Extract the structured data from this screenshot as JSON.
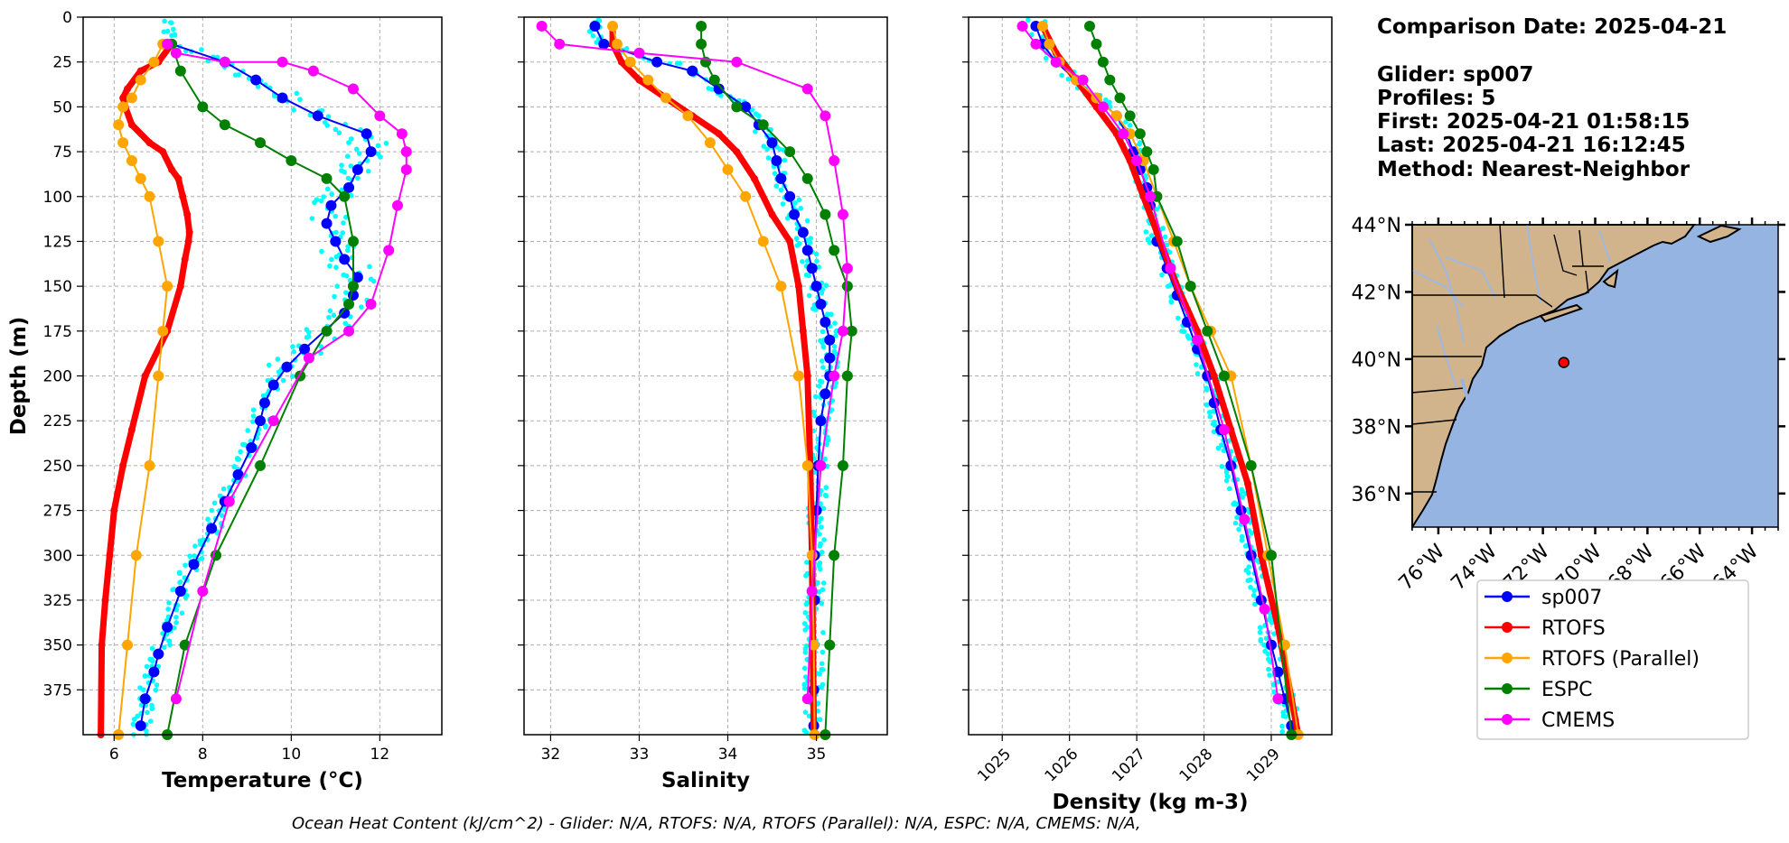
{
  "info": {
    "comparison_date": "Comparison Date: 2025-04-21",
    "glider": "Glider: sp007",
    "profiles": "Profiles: 5",
    "first": "First: 2025-04-21 01:58:15",
    "last": "Last: 2025-04-21 16:12:45",
    "method": "Method: Nearest-Neighbor"
  },
  "footer": "Ocean Heat Content (kJ/cm^2) - Glider: N/A,  RTOFS: N/A,  RTOFS (Parallel): N/A,  ESPC: N/A,  CMEMS: N/A,",
  "colors": {
    "sp007": "#0000ff",
    "RTOFS": "#ff0000",
    "RTOFS (Parallel)": "#ffa500",
    "ESPC": "#008000",
    "CMEMS": "#ff00ff",
    "raw": "#00ffff",
    "land": "#d2b48c",
    "ocean": "#96b4e1"
  },
  "legend": [
    "sp007",
    "RTOFS",
    "RTOFS (Parallel)",
    "ESPC",
    "CMEMS"
  ],
  "chart_data": [
    {
      "type": "line",
      "xlabel": "Temperature (°C)",
      "ylabel": "Depth (m)",
      "xlim": [
        5.3,
        13.4
      ],
      "ylim": [
        400,
        0
      ],
      "xticks": [
        6,
        8,
        10,
        12
      ],
      "yticks": [
        0,
        25,
        50,
        75,
        100,
        125,
        150,
        175,
        200,
        225,
        250,
        275,
        300,
        325,
        350,
        375
      ],
      "grid": true,
      "series": [
        {
          "name": "sp007",
          "x": [
            7.3,
            8.5,
            9.2,
            9.8,
            10.6,
            11.7,
            11.8,
            11.5,
            11.3,
            10.9,
            10.8,
            11.0,
            11.2,
            11.5,
            11.4,
            11.2,
            10.3,
            9.9,
            9.6,
            9.4,
            9.3,
            9.1,
            8.8,
            8.5,
            8.2,
            7.8,
            7.5,
            7.2,
            7.0,
            6.9,
            6.7,
            6.6
          ],
          "y": [
            15,
            25,
            35,
            45,
            55,
            65,
            75,
            85,
            95,
            105,
            115,
            125,
            135,
            145,
            155,
            165,
            185,
            195,
            205,
            215,
            225,
            240,
            255,
            270,
            285,
            305,
            320,
            340,
            355,
            365,
            380,
            395
          ]
        },
        {
          "name": "RTOFS",
          "x": [
            7.3,
            7.0,
            6.6,
            6.3,
            6.2,
            6.25,
            6.4,
            6.8,
            7.1,
            7.3,
            7.45,
            7.55,
            7.65,
            7.7,
            7.68,
            7.6,
            7.5,
            7.2,
            6.7,
            6.4,
            6.2,
            6.0,
            5.9,
            5.8,
            5.72,
            5.7
          ],
          "y": [
            15,
            25,
            30,
            40,
            45,
            50,
            60,
            70,
            75,
            85,
            90,
            100,
            110,
            120,
            125,
            135,
            150,
            175,
            200,
            230,
            250,
            275,
            300,
            325,
            350,
            400
          ]
        },
        {
          "name": "RTOFS (Parallel)",
          "x": [
            7.1,
            6.9,
            6.6,
            6.4,
            6.2,
            6.1,
            6.2,
            6.4,
            6.6,
            6.8,
            7.0,
            7.2,
            7.1,
            7.0,
            6.8,
            6.5,
            6.3,
            6.1
          ],
          "y": [
            15,
            25,
            35,
            45,
            50,
            60,
            70,
            80,
            90,
            100,
            125,
            150,
            175,
            200,
            250,
            300,
            350,
            400
          ]
        },
        {
          "name": "ESPC",
          "x": [
            7.3,
            7.5,
            8.0,
            8.5,
            9.3,
            10.0,
            10.8,
            11.2,
            11.4,
            11.4,
            11.3,
            10.8,
            10.2,
            9.3,
            8.3,
            7.6,
            7.2
          ],
          "y": [
            15,
            30,
            50,
            60,
            70,
            80,
            90,
            100,
            125,
            150,
            160,
            175,
            200,
            250,
            300,
            350,
            400
          ]
        },
        {
          "name": "CMEMS",
          "x": [
            7.2,
            7.4,
            8.5,
            9.8,
            10.5,
            11.4,
            12.0,
            12.5,
            12.6,
            12.6,
            12.4,
            12.2,
            11.8,
            11.3,
            10.4,
            9.6,
            8.6,
            8.0,
            7.4
          ],
          "y": [
            15,
            20,
            25,
            25,
            30,
            40,
            55,
            65,
            75,
            85,
            105,
            130,
            160,
            175,
            190,
            225,
            270,
            320,
            380
          ]
        }
      ]
    },
    {
      "type": "line",
      "xlabel": "Salinity",
      "xlim": [
        31.7,
        35.8
      ],
      "ylim": [
        400,
        0
      ],
      "xticks": [
        32,
        33,
        34,
        35
      ],
      "grid": true,
      "series": [
        {
          "name": "sp007",
          "x": [
            32.5,
            32.6,
            33.2,
            33.6,
            33.9,
            34.2,
            34.35,
            34.5,
            34.55,
            34.6,
            34.7,
            34.75,
            34.85,
            34.9,
            34.95,
            35.0,
            35.05,
            35.1,
            35.15,
            35.15,
            35.15,
            35.1,
            35.05,
            35.02,
            35.0,
            34.98,
            34.98,
            34.97,
            34.97,
            34.97
          ],
          "y": [
            5,
            15,
            25,
            30,
            40,
            50,
            60,
            70,
            80,
            90,
            100,
            110,
            120,
            130,
            140,
            150,
            160,
            170,
            180,
            190,
            200,
            210,
            225,
            250,
            275,
            300,
            325,
            350,
            375,
            395
          ]
        },
        {
          "name": "RTOFS",
          "x": [
            32.7,
            32.7,
            32.8,
            33.0,
            33.3,
            33.6,
            33.9,
            34.1,
            34.3,
            34.5,
            34.7,
            34.8,
            34.85,
            34.9,
            34.93,
            34.95,
            34.96,
            34.97
          ],
          "y": [
            5,
            15,
            25,
            35,
            45,
            55,
            65,
            75,
            90,
            110,
            125,
            150,
            175,
            200,
            250,
            300,
            350,
            400
          ]
        },
        {
          "name": "RTOFS (Parallel)",
          "x": [
            32.7,
            32.75,
            32.9,
            33.1,
            33.3,
            33.55,
            33.8,
            34.0,
            34.2,
            34.4,
            34.6,
            34.8,
            34.9,
            34.95,
            34.97,
            34.98
          ],
          "y": [
            5,
            15,
            25,
            35,
            45,
            55,
            70,
            85,
            100,
            125,
            150,
            200,
            250,
            300,
            350,
            400
          ]
        },
        {
          "name": "ESPC",
          "x": [
            33.7,
            33.7,
            33.75,
            33.85,
            34.1,
            34.4,
            34.7,
            34.9,
            35.1,
            35.2,
            35.35,
            35.4,
            35.35,
            35.3,
            35.2,
            35.15,
            35.1
          ],
          "y": [
            5,
            15,
            25,
            35,
            50,
            60,
            75,
            90,
            110,
            130,
            150,
            175,
            200,
            250,
            300,
            350,
            400
          ]
        },
        {
          "name": "CMEMS",
          "x": [
            31.9,
            32.1,
            33.0,
            34.1,
            34.9,
            35.1,
            35.2,
            35.3,
            35.35,
            35.3,
            35.2,
            35.05,
            34.95,
            34.9
          ],
          "y": [
            5,
            15,
            20,
            25,
            40,
            55,
            80,
            110,
            140,
            175,
            200,
            250,
            320,
            380
          ]
        }
      ]
    },
    {
      "type": "line",
      "xlabel": "Density (kg m-3)",
      "xlim": [
        1024.5,
        1029.9
      ],
      "ylim": [
        400,
        0
      ],
      "xticks": [
        1025,
        1026,
        1027,
        1028,
        1029
      ],
      "grid": true,
      "series": [
        {
          "name": "sp007",
          "x": [
            1025.5,
            1025.6,
            1025.8,
            1026.1,
            1026.4,
            1026.7,
            1026.85,
            1026.95,
            1027.05,
            1027.15,
            1027.2,
            1027.3,
            1027.45,
            1027.6,
            1027.75,
            1027.9,
            1028.05,
            1028.15,
            1028.25,
            1028.4,
            1028.55,
            1028.7,
            1028.85,
            1029.0,
            1029.1,
            1029.2,
            1029.3
          ],
          "y": [
            5,
            15,
            25,
            35,
            45,
            55,
            65,
            75,
            85,
            95,
            105,
            125,
            140,
            155,
            170,
            185,
            200,
            215,
            230,
            250,
            275,
            300,
            325,
            350,
            365,
            380,
            395
          ]
        },
        {
          "name": "RTOFS",
          "x": [
            1025.6,
            1025.8,
            1026.1,
            1026.4,
            1026.7,
            1026.9,
            1027.1,
            1027.3,
            1027.6,
            1027.9,
            1028.15,
            1028.4,
            1028.65,
            1028.85,
            1029.1,
            1029.4
          ],
          "y": [
            5,
            20,
            35,
            50,
            65,
            80,
            100,
            120,
            150,
            175,
            200,
            230,
            260,
            300,
            340,
            400
          ]
        },
        {
          "name": "RTOFS (Parallel)",
          "x": [
            1025.6,
            1025.7,
            1025.85,
            1026.1,
            1026.4,
            1026.7,
            1026.9,
            1027.1,
            1027.3,
            1027.55,
            1027.8,
            1028.1,
            1028.4,
            1028.7,
            1028.95,
            1029.2,
            1029.4
          ],
          "y": [
            5,
            15,
            25,
            35,
            45,
            55,
            65,
            80,
            100,
            125,
            150,
            175,
            200,
            250,
            300,
            350,
            400
          ]
        },
        {
          "name": "ESPC",
          "x": [
            1026.3,
            1026.4,
            1026.5,
            1026.6,
            1026.75,
            1026.9,
            1027.05,
            1027.15,
            1027.25,
            1027.3,
            1027.6,
            1027.8,
            1028.05,
            1028.3,
            1028.7,
            1029.0,
            1029.3
          ],
          "y": [
            5,
            15,
            25,
            35,
            45,
            55,
            65,
            75,
            85,
            100,
            125,
            150,
            175,
            200,
            250,
            300,
            400
          ]
        },
        {
          "name": "CMEMS",
          "x": [
            1025.3,
            1025.5,
            1025.8,
            1026.2,
            1026.5,
            1026.8,
            1027.0,
            1027.2,
            1027.5,
            1027.9,
            1028.3,
            1028.6,
            1028.9,
            1029.1
          ],
          "y": [
            5,
            15,
            25,
            35,
            50,
            65,
            80,
            100,
            140,
            180,
            230,
            280,
            330,
            380
          ]
        }
      ]
    }
  ],
  "map": {
    "lat_ticks": [
      "44°N",
      "42°N",
      "40°N",
      "38°N",
      "36°N"
    ],
    "lon_ticks": [
      "76°W",
      "74°W",
      "72°W",
      "70°W",
      "68°W",
      "66°W",
      "64°W"
    ],
    "lon_range": [
      -77,
      -63
    ],
    "lat_range": [
      35,
      44
    ],
    "marker": {
      "lon": -71.2,
      "lat": 39.9
    }
  }
}
